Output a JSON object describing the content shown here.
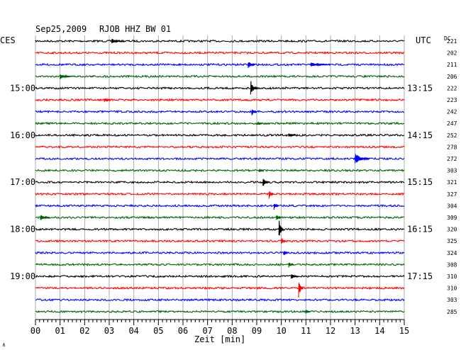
{
  "header": {
    "date": "Sep25,2009",
    "station": "RJOB HHZ BW 01"
  },
  "left_zone": "CES",
  "right_zone": "UTC",
  "dc_label": "DC",
  "xlabel": "Zeit [min]",
  "corner_mark": "∧",
  "colors": {
    "black": "#000000",
    "red": "#ff0000",
    "blue": "#0000ff",
    "green": "#006400"
  },
  "chart_data": {
    "type": "line",
    "title": "Sep25,2009   RJOB HHZ BW 01",
    "xlabel": "Zeit [min]",
    "ylabel": "",
    "xlim": [
      0,
      15
    ],
    "x_ticks": [
      "00",
      "01",
      "02",
      "03",
      "04",
      "05",
      "06",
      "07",
      "08",
      "09",
      "10",
      "11",
      "12",
      "13",
      "14",
      "15"
    ],
    "left_time_labels": [
      {
        "trace": 4,
        "label": "15:00"
      },
      {
        "trace": 8,
        "label": "16:00"
      },
      {
        "trace": 12,
        "label": "17:00"
      },
      {
        "trace": 16,
        "label": "18:00"
      },
      {
        "trace": 20,
        "label": "19:00"
      }
    ],
    "right_time_labels": [
      {
        "trace": 4,
        "label": "13:15"
      },
      {
        "trace": 8,
        "label": "14:15"
      },
      {
        "trace": 12,
        "label": "15:15"
      },
      {
        "trace": 16,
        "label": "16:15"
      },
      {
        "trace": 20,
        "label": "17:15"
      }
    ],
    "trace_color_cycle": [
      "black",
      "red",
      "blue",
      "green"
    ],
    "dc_values": [
      "221",
      "202",
      "211",
      "206",
      "222",
      "223",
      "242",
      "247",
      "252",
      "278",
      "272",
      "303",
      "321",
      "327",
      "304",
      "309",
      "320",
      "325",
      "324",
      "308",
      "310",
      "310",
      "303",
      "285"
    ],
    "events": [
      {
        "trace": 0,
        "minute": 3.1,
        "amplitude": 4,
        "duration": 0.4,
        "color": "black"
      },
      {
        "trace": 2,
        "minute": 8.65,
        "amplitude": 7,
        "duration": 0.3,
        "color": "blue"
      },
      {
        "trace": 2,
        "minute": 11.2,
        "amplitude": 3,
        "duration": 0.8,
        "color": "blue"
      },
      {
        "trace": 3,
        "minute": 1.0,
        "amplitude": 4,
        "duration": 0.5,
        "color": "green"
      },
      {
        "trace": 4,
        "minute": 8.75,
        "amplitude": 14,
        "duration": 0.25,
        "color": "black"
      },
      {
        "trace": 5,
        "minute": 2.8,
        "amplitude": 3,
        "duration": 0.3,
        "color": "red"
      },
      {
        "trace": 6,
        "minute": 8.8,
        "amplitude": 6,
        "duration": 0.2,
        "color": "blue"
      },
      {
        "trace": 7,
        "minute": 9.0,
        "amplitude": 3,
        "duration": 0.2,
        "color": "green"
      },
      {
        "trace": 8,
        "minute": 10.3,
        "amplitude": 3,
        "duration": 0.3,
        "color": "black"
      },
      {
        "trace": 10,
        "minute": 13.0,
        "amplitude": 8,
        "duration": 0.6,
        "color": "blue"
      },
      {
        "trace": 11,
        "minute": 9.1,
        "amplitude": 3,
        "duration": 0.2,
        "color": "green"
      },
      {
        "trace": 12,
        "minute": 9.25,
        "amplitude": 8,
        "duration": 0.25,
        "color": "black"
      },
      {
        "trace": 13,
        "minute": 9.5,
        "amplitude": 7,
        "duration": 0.2,
        "color": "red"
      },
      {
        "trace": 14,
        "minute": 9.7,
        "amplitude": 6,
        "duration": 0.2,
        "color": "blue"
      },
      {
        "trace": 15,
        "minute": 0.2,
        "amplitude": 5,
        "duration": 0.4,
        "color": "green"
      },
      {
        "trace": 15,
        "minute": 9.8,
        "amplitude": 6,
        "duration": 0.2,
        "color": "green"
      },
      {
        "trace": 16,
        "minute": 9.9,
        "amplitude": 16,
        "duration": 0.2,
        "color": "black"
      },
      {
        "trace": 17,
        "minute": 10.0,
        "amplitude": 6,
        "duration": 0.2,
        "color": "red"
      },
      {
        "trace": 18,
        "minute": 10.1,
        "amplitude": 5,
        "duration": 0.2,
        "color": "blue"
      },
      {
        "trace": 19,
        "minute": 10.3,
        "amplitude": 5,
        "duration": 0.2,
        "color": "green"
      },
      {
        "trace": 20,
        "minute": 10.4,
        "amplitude": 5,
        "duration": 0.25,
        "color": "black"
      },
      {
        "trace": 21,
        "minute": 10.7,
        "amplitude": 14,
        "duration": 0.2,
        "color": "red"
      },
      {
        "trace": 23,
        "minute": 11.0,
        "amplitude": 3,
        "duration": 0.2,
        "color": "green"
      }
    ],
    "grid": true
  }
}
